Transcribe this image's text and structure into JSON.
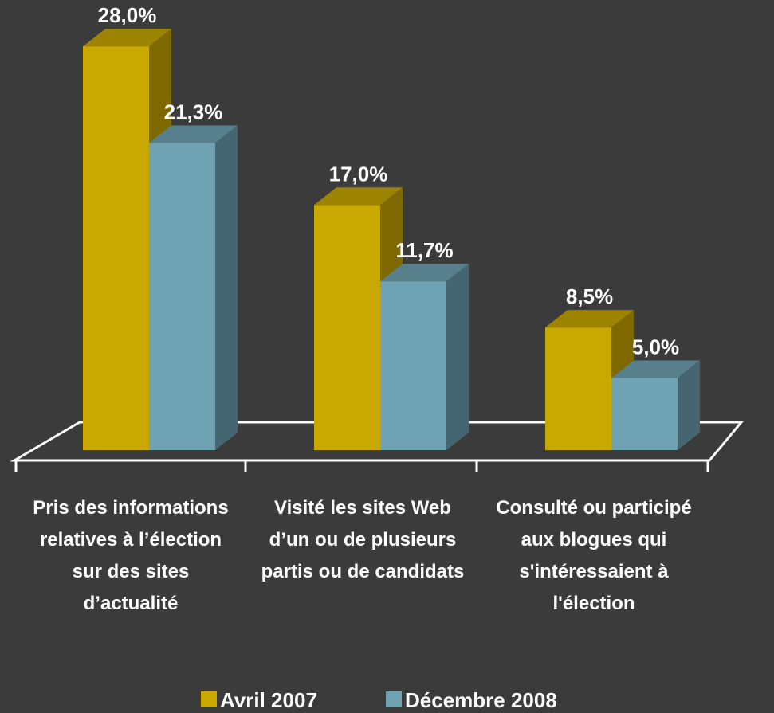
{
  "chart_data": {
    "type": "bar3d",
    "categories": [
      "Pris des informations relatives à l’élection sur des sites d’actualité",
      "Visité les sites Web d’un ou de plusieurs partis ou de candidats",
      "Consulté ou participé aux blogues qui s'intéressaient à l'élection"
    ],
    "series": [
      {
        "name": "Avril 2007",
        "color": "#c9a900",
        "values": [
          28.0,
          17.0,
          8.5
        ],
        "value_labels": [
          "28,0%",
          "17,0%",
          "8,5%"
        ]
      },
      {
        "name": "Décembre 2008",
        "color": "#6fa3b4",
        "values": [
          21.3,
          11.7,
          5.0
        ],
        "value_labels": [
          "21,3%",
          "11,7%",
          "5,0%"
        ]
      }
    ],
    "legend": "bottom"
  }
}
